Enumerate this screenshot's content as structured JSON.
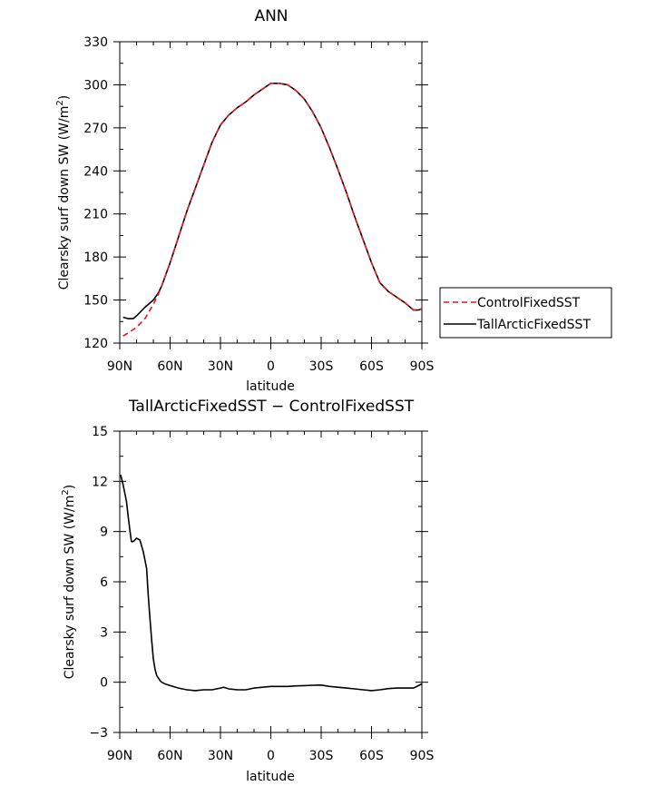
{
  "chart_data": [
    {
      "type": "line",
      "title": "ANN",
      "xlabel": "latitude",
      "ylabel_main": "Clearsky surf down SW (W/m",
      "ylabel_sup": "2",
      "ylabel_close": ")",
      "xlim": [
        90,
        -90
      ],
      "ylim": [
        120,
        330
      ],
      "xticks": [
        {
          "v": 90,
          "label": "90N"
        },
        {
          "v": 60,
          "label": "60N"
        },
        {
          "v": 30,
          "label": "30N"
        },
        {
          "v": 0,
          "label": "0"
        },
        {
          "v": -30,
          "label": "30S"
        },
        {
          "v": -60,
          "label": "60S"
        },
        {
          "v": -90,
          "label": "90S"
        }
      ],
      "yticks": [
        120,
        150,
        180,
        210,
        240,
        270,
        300,
        330
      ],
      "legend_position": "right",
      "series": [
        {
          "name": "ControlFixedSST",
          "color": "#e8141e",
          "dash": "dashed",
          "x": [
            88,
            85,
            80,
            75,
            70,
            67,
            65,
            60,
            55,
            50,
            45,
            40,
            35,
            30,
            25,
            20,
            15,
            10,
            5,
            0,
            -5,
            -10,
            -15,
            -20,
            -25,
            -30,
            -35,
            -40,
            -45,
            -50,
            -55,
            -60,
            -65,
            -70,
            -75,
            -80,
            -85,
            -88,
            -90
          ],
          "y": [
            125,
            127,
            131,
            137,
            147,
            154,
            160,
            176,
            194,
            212,
            228,
            244,
            260,
            272,
            279,
            284,
            288,
            293,
            297,
            301,
            301,
            300,
            296,
            290,
            281,
            270,
            256,
            241,
            225,
            208,
            192,
            176,
            162,
            156,
            152,
            148,
            143,
            143,
            144
          ]
        },
        {
          "name": "TallArcticFixedSST",
          "color": "#000000",
          "dash": "solid",
          "x": [
            88,
            85,
            82,
            80,
            75,
            70,
            67,
            65,
            60,
            55,
            50,
            45,
            40,
            35,
            30,
            25,
            20,
            15,
            10,
            5,
            0,
            -5,
            -10,
            -15,
            -20,
            -25,
            -30,
            -35,
            -40,
            -45,
            -50,
            -55,
            -60,
            -65,
            -70,
            -75,
            -80,
            -85,
            -88,
            -90
          ],
          "y": [
            138,
            137,
            137,
            139,
            145,
            150,
            155,
            160,
            176,
            194,
            212,
            228,
            244,
            260,
            272,
            279,
            284,
            288,
            293,
            297,
            301,
            301,
            300,
            296,
            290,
            281,
            270,
            256,
            241,
            225,
            208,
            192,
            176,
            162,
            156,
            152,
            148,
            143,
            143,
            144
          ]
        }
      ]
    },
    {
      "type": "line",
      "title": "TallArcticFixedSST − ControlFixedSST",
      "xlabel": "latitude",
      "ylabel_main": "Clearsky surf down SW (W/m",
      "ylabel_sup": "2",
      "ylabel_close": ")",
      "xlim": [
        90,
        -90
      ],
      "ylim": [
        -3,
        15
      ],
      "xticks": [
        {
          "v": 90,
          "label": "90N"
        },
        {
          "v": 60,
          "label": "60N"
        },
        {
          "v": 30,
          "label": "30N"
        },
        {
          "v": 0,
          "label": "0"
        },
        {
          "v": -30,
          "label": "30S"
        },
        {
          "v": -60,
          "label": "60S"
        },
        {
          "v": -90,
          "label": "90S"
        }
      ],
      "yticks": [
        {
          "v": -3,
          "label": "−3"
        },
        {
          "v": 0,
          "label": "0"
        },
        {
          "v": 3,
          "label": "3"
        },
        {
          "v": 6,
          "label": "6"
        },
        {
          "v": 9,
          "label": "9"
        },
        {
          "v": 12,
          "label": "12"
        },
        {
          "v": 15,
          "label": "15"
        }
      ],
      "series": [
        {
          "color": "#000000",
          "dash": "solid",
          "x": [
            89.5,
            88,
            86,
            85,
            84,
            83,
            82,
            81,
            80,
            78,
            76,
            74,
            73,
            72,
            71,
            70,
            69,
            68,
            67,
            66,
            65,
            63,
            60,
            55,
            50,
            45,
            40,
            35,
            30,
            28,
            25,
            20,
            15,
            10,
            5,
            0,
            -5,
            -10,
            -15,
            -20,
            -25,
            -30,
            -35,
            -40,
            -45,
            -50,
            -55,
            -60,
            -65,
            -70,
            -75,
            -80,
            -85,
            -88,
            -90
          ],
          "y": [
            12.4,
            11.8,
            10.8,
            9.9,
            9.1,
            8.4,
            8.4,
            8.5,
            8.6,
            8.5,
            7.8,
            6.8,
            5.2,
            3.8,
            2.5,
            1.4,
            0.8,
            0.4,
            0.25,
            0.1,
            0.0,
            -0.1,
            -0.2,
            -0.35,
            -0.45,
            -0.5,
            -0.45,
            -0.45,
            -0.35,
            -0.3,
            -0.4,
            -0.45,
            -0.45,
            -0.35,
            -0.3,
            -0.25,
            -0.25,
            -0.25,
            -0.22,
            -0.2,
            -0.18,
            -0.17,
            -0.25,
            -0.3,
            -0.35,
            -0.4,
            -0.45,
            -0.5,
            -0.45,
            -0.38,
            -0.35,
            -0.35,
            -0.35,
            -0.2,
            -0.1
          ]
        }
      ]
    }
  ]
}
